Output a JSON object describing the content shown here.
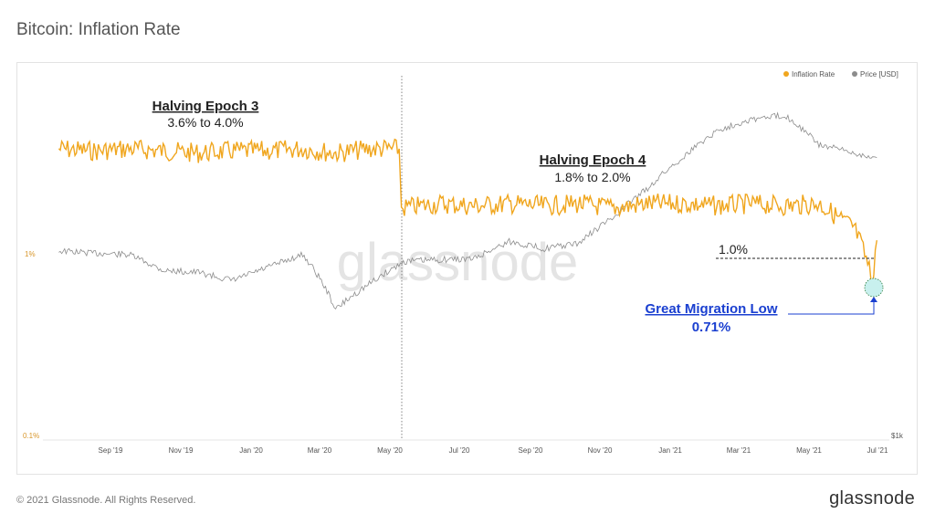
{
  "page_title": "Bitcoin: Inflation Rate",
  "footer": {
    "copyright": "© 2021 Glassnode. All Rights Reserved.",
    "brand": "glassnode"
  },
  "watermark": "glassnode",
  "colors": {
    "inflation": "#f0a61e",
    "price": "#8c8c8c",
    "annotation_blue": "#1a3fd0",
    "highlight_fill": "#c8f0ee"
  },
  "chart_data": {
    "type": "line",
    "title": "Bitcoin: Inflation Rate",
    "x_ticks": [
      "Sep '19",
      "Nov '19",
      "Jan '20",
      "Mar '20",
      "May '20",
      "Jul '20",
      "Sep '20",
      "Nov '20",
      "Jan '21",
      "Mar '21",
      "May '21",
      "Jul '21"
    ],
    "y_left": {
      "scale": "log",
      "tick_labels": [
        "1%",
        "0.1%"
      ],
      "range": [
        0.1,
        5
      ]
    },
    "y_right": {
      "tick_labels": [
        "$1k"
      ]
    },
    "legend": {
      "placement": "top-right",
      "entries": [
        "Inflation Rate",
        "Price [USD]"
      ]
    },
    "series": [
      {
        "name": "Inflation Rate",
        "x": [
          "2019-07-15",
          "2019-08-15",
          "2019-09-15",
          "2019-10-15",
          "2019-11-15",
          "2019-12-15",
          "2020-01-15",
          "2020-02-15",
          "2020-03-15",
          "2020-04-15",
          "2020-05-10",
          "2020-05-12",
          "2020-06-15",
          "2020-07-15",
          "2020-08-15",
          "2020-09-15",
          "2020-10-15",
          "2020-11-15",
          "2020-12-15",
          "2021-01-15",
          "2021-02-15",
          "2021-03-15",
          "2021-04-15",
          "2021-05-15",
          "2021-06-01",
          "2021-06-15",
          "2021-07-01",
          "2021-07-05"
        ],
        "values": [
          3.8,
          3.7,
          3.8,
          3.7,
          3.6,
          3.7,
          3.7,
          3.8,
          3.6,
          3.8,
          3.8,
          1.8,
          1.9,
          1.85,
          1.9,
          1.85,
          1.9,
          1.8,
          1.9,
          1.9,
          1.85,
          1.9,
          1.85,
          1.9,
          1.6,
          1.4,
          0.71,
          1.2
        ]
      },
      {
        "name": "Price [USD]",
        "x": [
          "2019-07-15",
          "2019-08-15",
          "2019-09-15",
          "2019-10-15",
          "2019-11-15",
          "2019-12-15",
          "2020-01-15",
          "2020-02-15",
          "2020-03-15",
          "2020-04-15",
          "2020-05-15",
          "2020-06-15",
          "2020-07-15",
          "2020-08-15",
          "2020-09-15",
          "2020-10-15",
          "2020-11-15",
          "2020-12-15",
          "2021-01-15",
          "2021-02-15",
          "2021-03-15",
          "2021-04-15",
          "2021-05-15",
          "2021-06-15",
          "2021-07-05"
        ],
        "values": [
          10500,
          10200,
          10000,
          8200,
          8000,
          7200,
          8500,
          10000,
          5000,
          7000,
          9200,
          9400,
          9500,
          11800,
          10800,
          11500,
          16000,
          23000,
          34000,
          48000,
          55000,
          58000,
          40000,
          36000,
          34000
        ]
      }
    ],
    "annotations": [
      {
        "title": "Halving Epoch 3",
        "subtitle": "3.6% to 4.0%"
      },
      {
        "title": "Halving Epoch 4",
        "subtitle": "1.8% to 2.0%"
      },
      {
        "label": "1.0%"
      },
      {
        "title": "Great Migration Low",
        "value": "0.71%"
      }
    ],
    "grid": false
  }
}
